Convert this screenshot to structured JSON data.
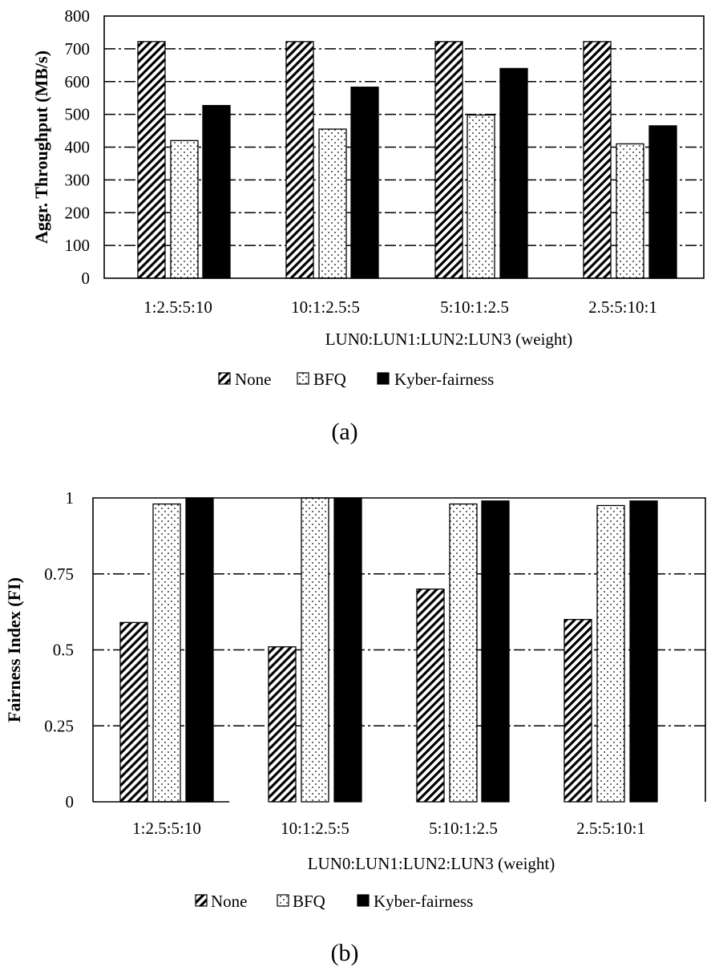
{
  "chart_data": [
    {
      "type": "bar",
      "panel_label": "(a)",
      "ylabel": "Aggr. Throughput (MB/s)",
      "xlabel": "LUN0:LUN1:LUN2:LUN3  (weight)",
      "categories": [
        "1:2.5:5:10",
        "10:1:2.5:5",
        "5:10:1:2.5",
        "2.5:5:10:1"
      ],
      "ylim": [
        0,
        800
      ],
      "yticks": [
        "0",
        "100",
        "200",
        "300",
        "400",
        "500",
        "600",
        "700",
        "800"
      ],
      "ytick_values": [
        0,
        100,
        200,
        300,
        400,
        500,
        600,
        700,
        800
      ],
      "grid": true,
      "legend_position": "bottom",
      "series": [
        {
          "name": "None",
          "pattern": "diagonal-hatch",
          "values": [
            722,
            722,
            722,
            722
          ]
        },
        {
          "name": "BFQ",
          "pattern": "dotted",
          "values": [
            420,
            455,
            498,
            410
          ]
        },
        {
          "name": "Kyber-fairness",
          "pattern": "solid-black",
          "values": [
            527,
            583,
            640,
            465
          ]
        }
      ]
    },
    {
      "type": "bar",
      "panel_label": "(b)",
      "ylabel": "Fairness Index (FI)",
      "xlabel": "LUN0:LUN1:LUN2:LUN3  (weight)",
      "categories": [
        "1:2.5:5:10",
        "10:1:2.5:5",
        "5:10:1:2.5",
        "2.5:5:10:1"
      ],
      "ylim": [
        0,
        1
      ],
      "yticks": [
        "0",
        "0.25",
        "0.5",
        "0.75",
        "1"
      ],
      "ytick_values": [
        0,
        0.25,
        0.5,
        0.75,
        1
      ],
      "grid": true,
      "legend_position": "bottom",
      "series": [
        {
          "name": "None",
          "pattern": "diagonal-hatch",
          "values": [
            0.59,
            0.51,
            0.7,
            0.6
          ]
        },
        {
          "name": "BFQ",
          "pattern": "dotted",
          "values": [
            0.98,
            1.0,
            0.98,
            0.975
          ]
        },
        {
          "name": "Kyber-fairness",
          "pattern": "solid-black",
          "values": [
            1.0,
            1.0,
            0.99,
            0.99
          ]
        }
      ]
    }
  ],
  "colors": {
    "ink": "#000000",
    "background": "#ffffff"
  }
}
